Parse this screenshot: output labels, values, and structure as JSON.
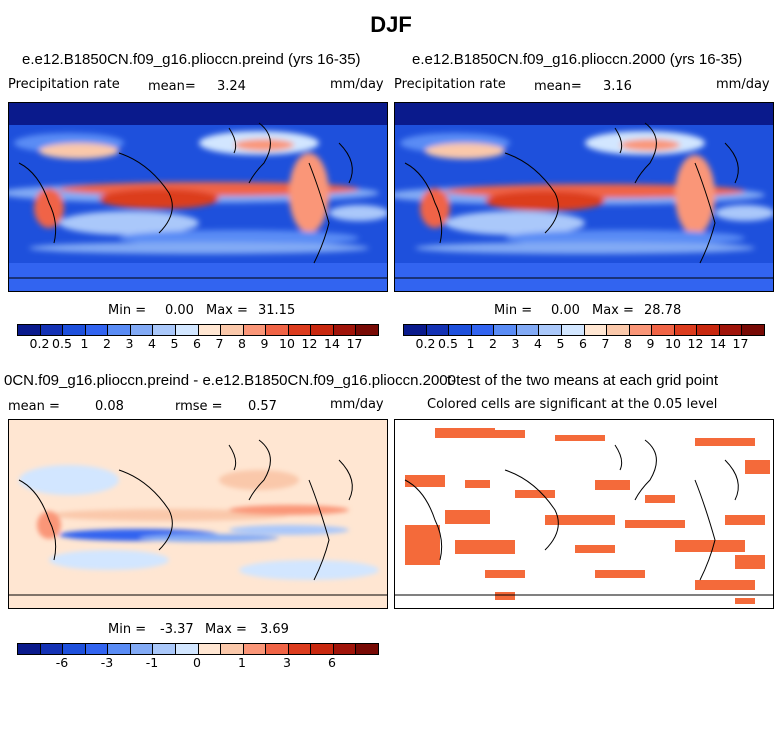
{
  "season": "DJF",
  "panels": {
    "top_left": {
      "title": "e.e12.B1850CN.f09_g16.plioccn.preind (yrs 16-35)",
      "variable": "Precipitation rate",
      "mean_label": "mean=",
      "mean_value": "3.24",
      "units": "mm/day",
      "min_label": "Min =",
      "min_value": "0.00",
      "max_label": "Max =",
      "max_value": "31.15"
    },
    "top_right": {
      "title": "e.e12.B1850CN.f09_g16.plioccn.2000 (yrs 16-35)",
      "variable": "Precipitation rate",
      "mean_label": "mean=",
      "mean_value": "3.16",
      "units": "mm/day",
      "min_label": "Min =",
      "min_value": "0.00",
      "max_label": "Max =",
      "max_value": "28.78"
    },
    "bottom_left": {
      "title": "0CN.f09_g16.plioccn.preind - e.e12.B1850CN.f09_g16.plioccn.2000",
      "mean_label": "mean =",
      "mean_value": "0.08",
      "rmse_label": "rmse =",
      "rmse_value": "0.57",
      "units": "mm/day",
      "min_label": "Min =",
      "min_value": "-3.37",
      "max_label": "Max =",
      "max_value": "3.69"
    },
    "bottom_right": {
      "title": "t-test of the two means at each grid point",
      "subtitle": "Colored cells are significant at the 0.05 level"
    }
  },
  "colorbar_precip": {
    "labels": [
      "0.2",
      "0.5",
      "1",
      "2",
      "3",
      "4",
      "5",
      "6",
      "7",
      "8",
      "9",
      "10",
      "12",
      "14",
      "17"
    ],
    "colors": [
      "#0a1a8c",
      "#1432b4",
      "#1e50dc",
      "#3264f0",
      "#5a8cf5",
      "#82aaf5",
      "#aac8fa",
      "#d2e6ff",
      "#ffe6d2",
      "#fac8aa",
      "#fa9678",
      "#f06446",
      "#dc3c1e",
      "#c8280f",
      "#a0140a",
      "#780a05"
    ]
  },
  "colorbar_diff": {
    "labels": [
      "-6",
      "-3",
      "-1",
      "0",
      "1",
      "3",
      "6"
    ],
    "colors": [
      "#0a1a8c",
      "#1432b4",
      "#1e50dc",
      "#3264f0",
      "#5a8cf5",
      "#82aaf5",
      "#aac8fa",
      "#d2e6ff",
      "#ffe6d2",
      "#fac8aa",
      "#fa9678",
      "#f06446",
      "#dc3c1e",
      "#c8280f",
      "#a0140a",
      "#780a05"
    ]
  },
  "significance_color": "#f46a3a"
}
